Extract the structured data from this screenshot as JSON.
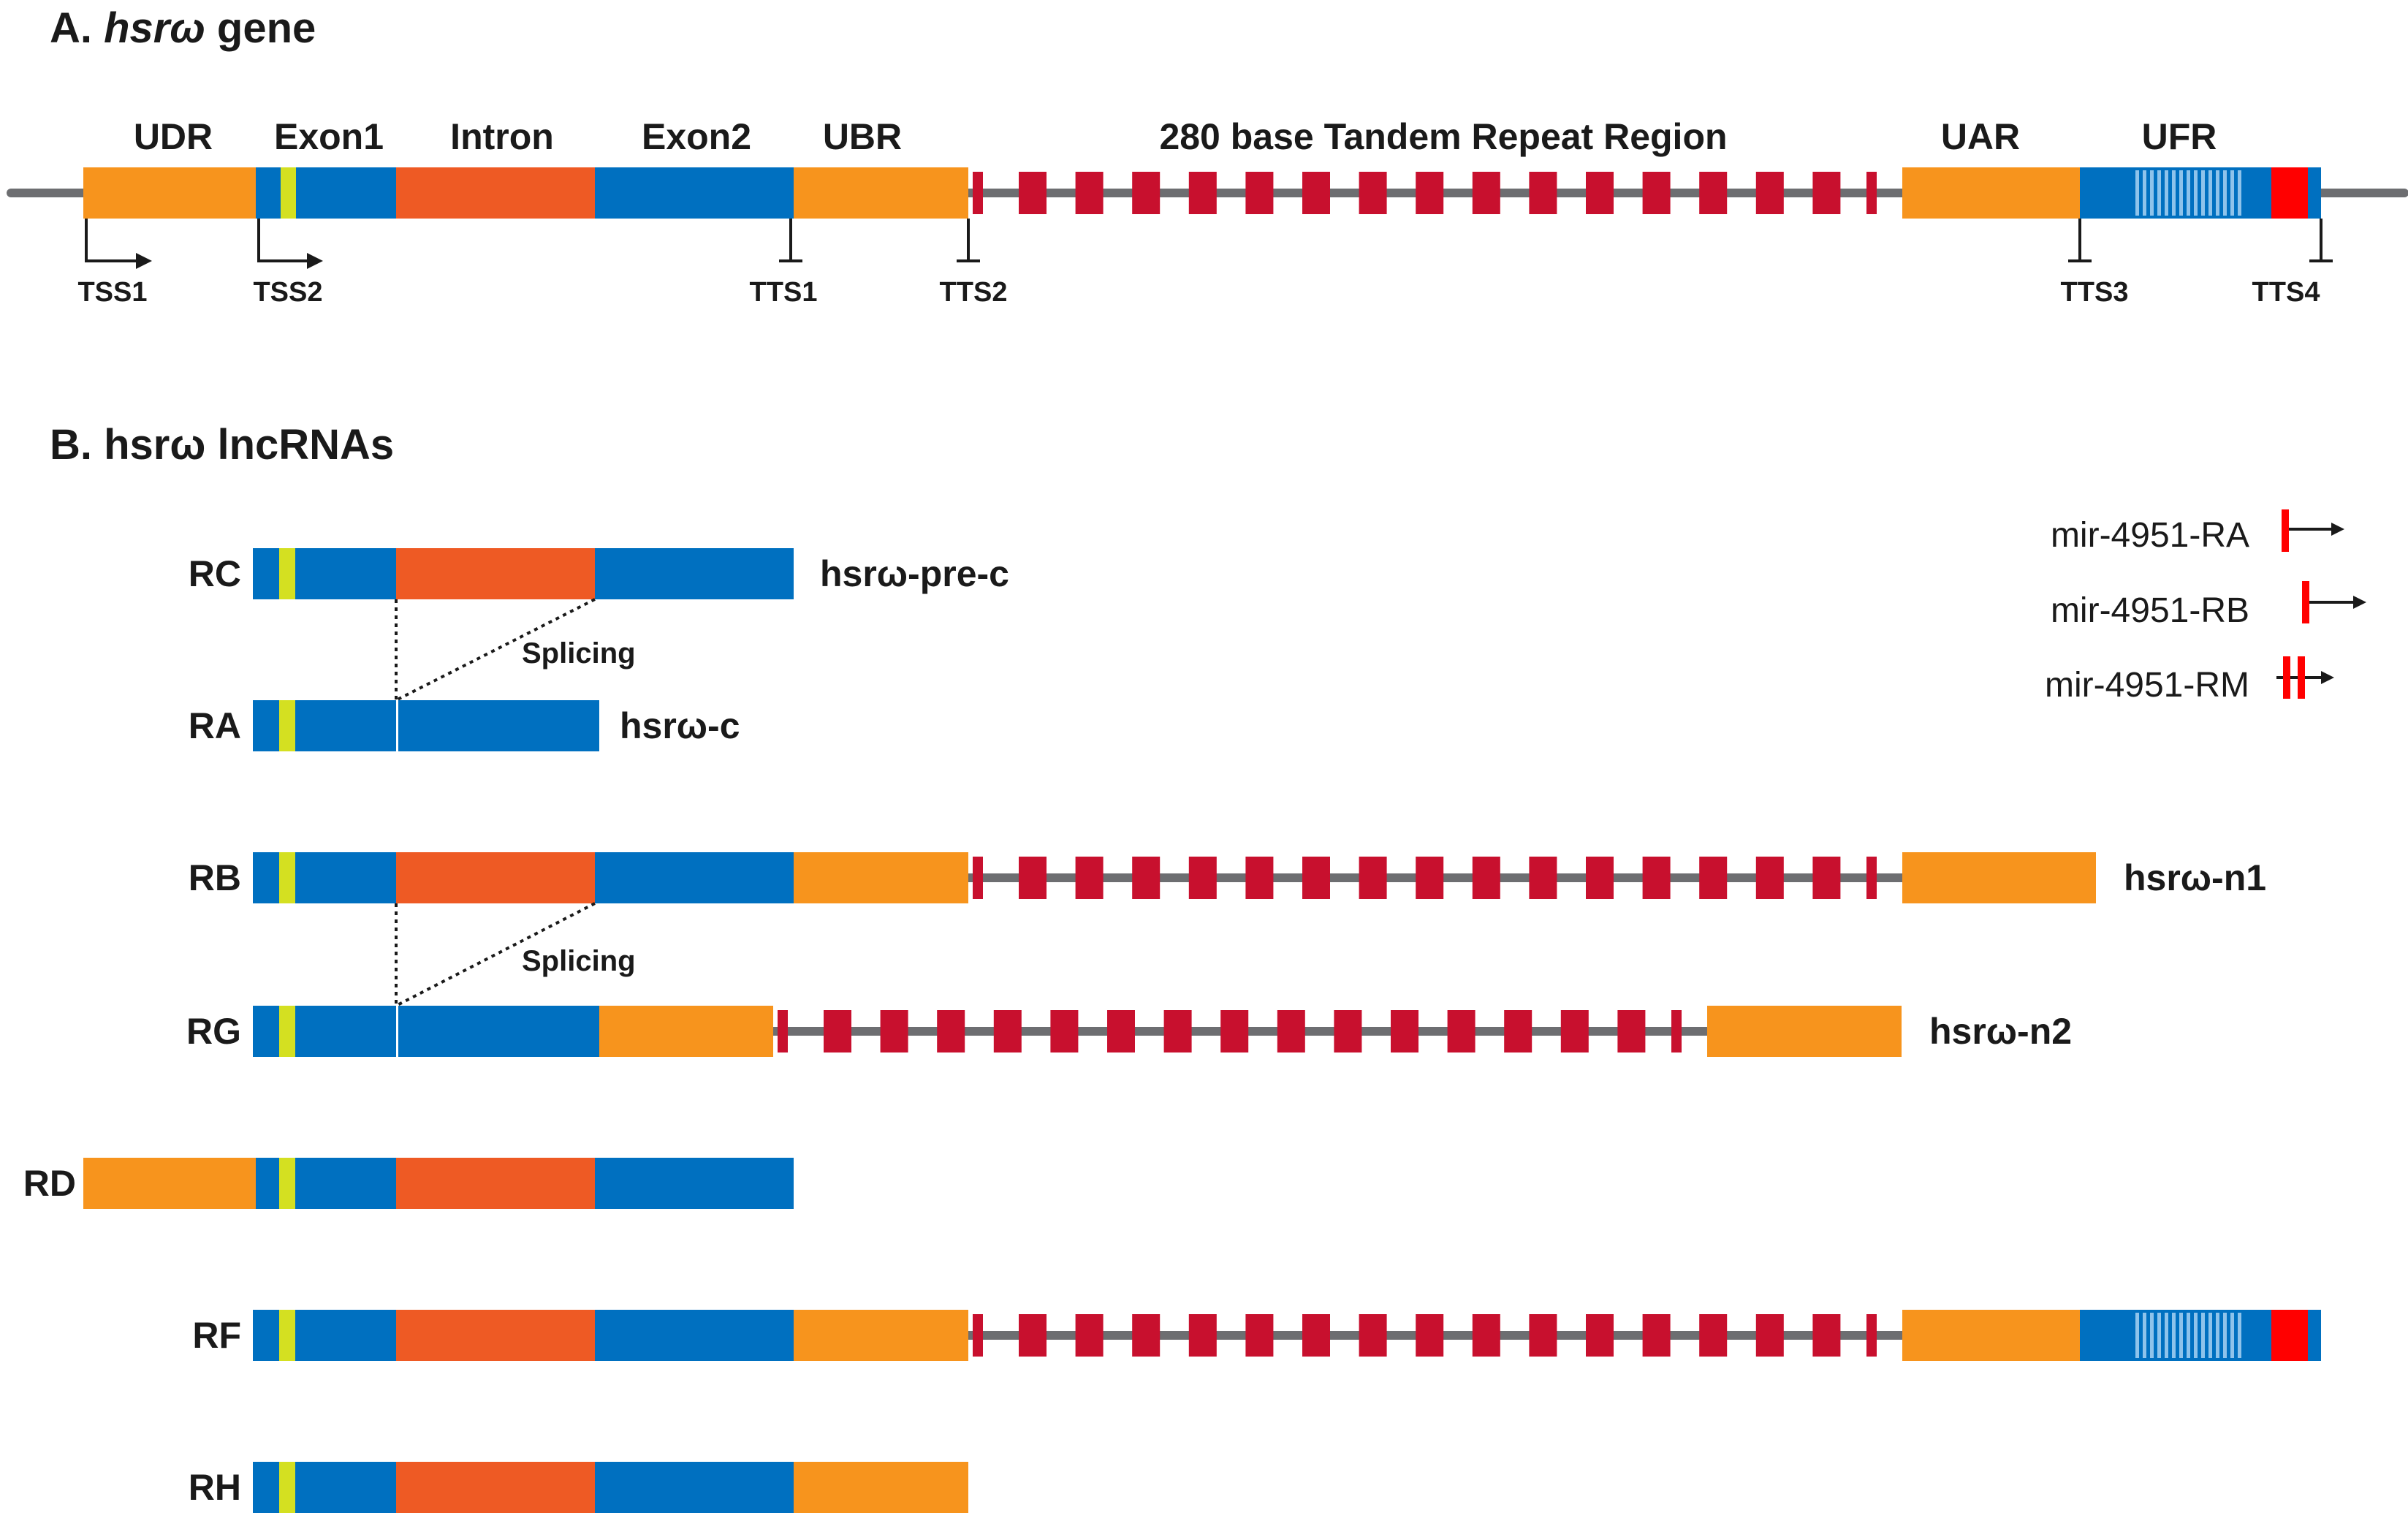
{
  "panel_a": {
    "heading_prefix": "A. ",
    "heading_gene": "hsrω",
    "heading_suffix": " gene",
    "regions": {
      "udr": "UDR",
      "exon1": "Exon1",
      "intron": "Intron",
      "exon2": "Exon2",
      "ubr": "UBR",
      "repeat": "280 base Tandem Repeat Region",
      "uar": "UAR",
      "ufr": "UFR"
    },
    "sites": {
      "tss1": "TSS1",
      "tss2": "TSS2",
      "tts1": "TTS1",
      "tts2": "TTS2",
      "tts3": "TTS3",
      "tts4": "TTS4"
    }
  },
  "panel_b": {
    "heading": "B. hsrω lncRNAs",
    "splicing_label": "Splicing",
    "transcripts": {
      "rc": {
        "id": "RC",
        "name": "hsrω-pre-c"
      },
      "ra": {
        "id": "RA",
        "name": "hsrω-c"
      },
      "rb": {
        "id": "RB",
        "name": "hsrω-n1"
      },
      "rg": {
        "id": "RG",
        "name": "hsrω-n2"
      },
      "rd": {
        "id": "RD"
      },
      "rf": {
        "id": "RF"
      },
      "rh": {
        "id": "RH"
      }
    },
    "legend": [
      {
        "label": "mir-4951-RA"
      },
      {
        "label": "mir-4951-RB"
      },
      {
        "label": "mir-4951-RM"
      }
    ]
  },
  "colors": {
    "udr": "#F7941D",
    "exon": "#0070C0",
    "tss_marker": "#D4E021",
    "intron": "#EE5A24",
    "repeat_box": "#C8102E",
    "line": "#6D6E71",
    "mir": "#FF0000",
    "ufr_stripes": "#8EC3EB"
  }
}
